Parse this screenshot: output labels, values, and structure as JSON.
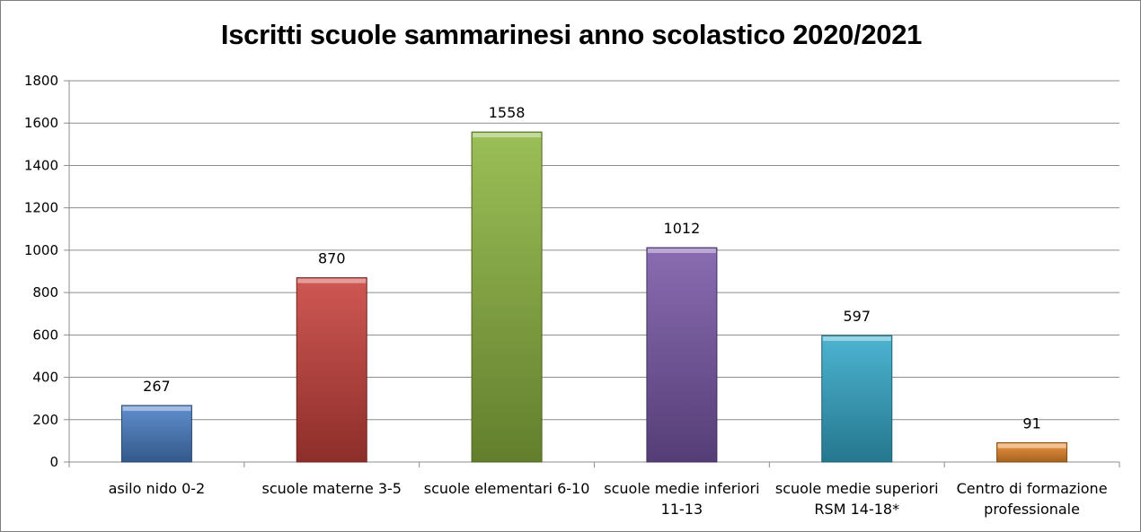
{
  "chart_data": {
    "type": "bar",
    "title": "Iscritti scuole sammarinesi anno scolastico 2020/2021",
    "categories": [
      [
        "asilo nido 0-2"
      ],
      [
        "scuole materne 3-5"
      ],
      [
        "scuole elementari 6-10"
      ],
      [
        "scuole medie inferiori",
        "11-13"
      ],
      [
        "scuole medie superiori",
        "RSM 14-18*"
      ],
      [
        "Centro di formazione",
        "professionale"
      ]
    ],
    "values": [
      267,
      870,
      1558,
      1012,
      597,
      91
    ],
    "data_labels": [
      "267",
      "870",
      "1558",
      "1012",
      "597",
      "91"
    ],
    "colors": [
      "#4a7fc6",
      "#c9413c",
      "#8db640",
      "#7a58a8",
      "#35aacb",
      "#ea8a2b"
    ],
    "ylim": [
      0,
      1800
    ],
    "yticks": [
      0,
      200,
      400,
      600,
      800,
      1000,
      1200,
      1400,
      1600,
      1800
    ],
    "grid": true,
    "legend": "none"
  }
}
